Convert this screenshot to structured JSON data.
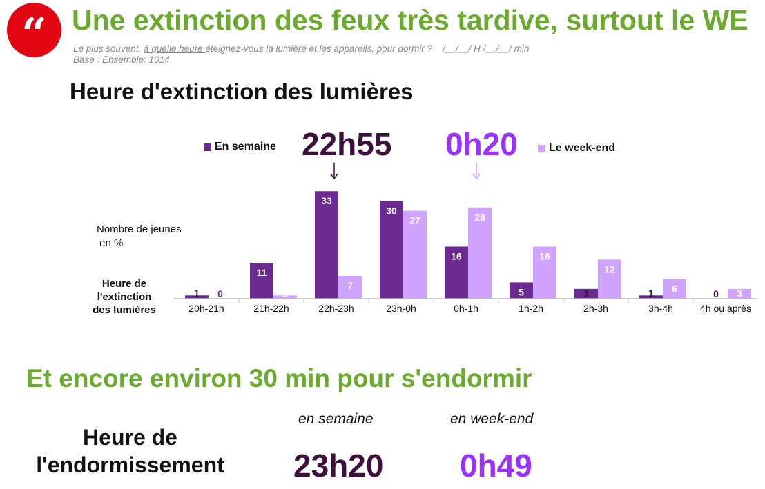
{
  "header": {
    "quote_icon": "quote-mark-icon",
    "quote_glyph": "“",
    "title": "Une extinction des feux très tardive, surtout le WE",
    "question_before": "Le plus souvent, ",
    "question_underlined": "à quelle heure ",
    "question_after": "éteignez-vous la lumière et les appareils, pour dormir ?    /__/__/ H /__/__/ min",
    "base": "Base : Ensemble: 1014"
  },
  "colors": {
    "semaine": "#6b2a90",
    "weekend": "#cfa3ff",
    "semaine_time": "#3d0f3b",
    "weekend_time": "#9b30ff",
    "green": "#6aab2e",
    "badge": "#e30613"
  },
  "chart_data": {
    "type": "bar",
    "title": "Heure d'extinction des lumières",
    "ylabel": "Nombre de jeunes\n en %",
    "xlabel": "Heure de\nl'extinction\ndes lumières",
    "categories": [
      "20h-21h",
      "21h-22h",
      "22h-23h",
      "23h-0h",
      "0h-1h",
      "1h-2h",
      "2h-3h",
      "3h-4h",
      "4h ou après"
    ],
    "series": [
      {
        "name": "En semaine",
        "values": [
          1,
          11,
          33,
          30,
          16,
          5,
          3,
          1,
          0
        ]
      },
      {
        "name": "Le week-end",
        "values": [
          0,
          1,
          7,
          27,
          28,
          16,
          12,
          6,
          3
        ]
      }
    ],
    "ylim": [
      0,
      35
    ],
    "grid": false,
    "legend": "top"
  },
  "chart_labels": {
    "ylabel_line1": "Nombre de jeunes",
    "ylabel_line2": " en %",
    "xlabel_line1": "Heure de",
    "xlabel_line2": "l'extinction",
    "xlabel_line3": "des lumières"
  },
  "medians": {
    "semaine": "22h55",
    "weekend": "0h20",
    "arrow_icon": "arrow-down-icon"
  },
  "sleep": {
    "title": "Et encore environ 30 min pour s'endormir",
    "label_line1": "Heure de",
    "label_line2": "l'endormissement",
    "semaine_head": "en semaine",
    "weekend_head": "en week-end",
    "semaine_time": "23h20",
    "weekend_time": "0h49"
  }
}
